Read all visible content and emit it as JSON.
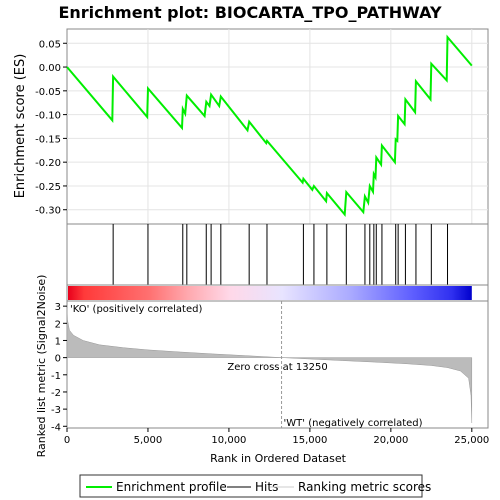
{
  "chart_data": {
    "type": "line",
    "title": "Enrichment plot: BIOCARTA_TPO_PATHWAY",
    "top_panel": {
      "ylabel": "Enrichment score (ES)",
      "ylim": [
        -0.33,
        0.08
      ],
      "yticks": [
        0.05,
        0.0,
        -0.05,
        -0.1,
        -0.15,
        -0.2,
        -0.25,
        -0.3
      ],
      "ytick_labels": [
        "0.05",
        "0.00",
        "-0.05",
        "-0.10",
        "-0.15",
        "-0.20",
        "-0.25",
        "-0.30"
      ],
      "profile_color": "#00ee00",
      "profile_points": [
        [
          0,
          0.0
        ],
        [
          2800,
          -0.112
        ],
        [
          2850,
          -0.02
        ],
        [
          4950,
          -0.105
        ],
        [
          5000,
          -0.045
        ],
        [
          7100,
          -0.128
        ],
        [
          7150,
          -0.088
        ],
        [
          7300,
          -0.098
        ],
        [
          7400,
          -0.06
        ],
        [
          8500,
          -0.103
        ],
        [
          8600,
          -0.073
        ],
        [
          8800,
          -0.082
        ],
        [
          8900,
          -0.058
        ],
        [
          9400,
          -0.082
        ],
        [
          9500,
          -0.062
        ],
        [
          11150,
          -0.133
        ],
        [
          11250,
          -0.115
        ],
        [
          12300,
          -0.16
        ],
        [
          12350,
          -0.155
        ],
        [
          14550,
          -0.243
        ],
        [
          14600,
          -0.235
        ],
        [
          15150,
          -0.258
        ],
        [
          15250,
          -0.25
        ],
        [
          16000,
          -0.282
        ],
        [
          16050,
          -0.265
        ],
        [
          17150,
          -0.31
        ],
        [
          17250,
          -0.263
        ],
        [
          18300,
          -0.305
        ],
        [
          18400,
          -0.272
        ],
        [
          18600,
          -0.285
        ],
        [
          18700,
          -0.25
        ],
        [
          18900,
          -0.262
        ],
        [
          18950,
          -0.225
        ],
        [
          19050,
          -0.232
        ],
        [
          19100,
          -0.19
        ],
        [
          19400,
          -0.205
        ],
        [
          19450,
          -0.165
        ],
        [
          20250,
          -0.2
        ],
        [
          20300,
          -0.152
        ],
        [
          20400,
          -0.155
        ],
        [
          20450,
          -0.103
        ],
        [
          20850,
          -0.12
        ],
        [
          20900,
          -0.068
        ],
        [
          21500,
          -0.095
        ],
        [
          21550,
          -0.03
        ],
        [
          22450,
          -0.068
        ],
        [
          22500,
          0.007
        ],
        [
          23450,
          -0.028
        ],
        [
          23500,
          0.063
        ],
        [
          25000,
          0.003
        ]
      ]
    },
    "hits_panel": {
      "label": "Hits",
      "hit_positions": [
        2850,
        5000,
        7150,
        7400,
        8600,
        8900,
        9500,
        11250,
        12350,
        14600,
        15250,
        16050,
        17250,
        18400,
        18700,
        18950,
        19100,
        19450,
        20300,
        20450,
        20900,
        21550,
        22500,
        23500
      ]
    },
    "rank_panel": {
      "ylabel": "Ranked list metric (Signal2Noise)",
      "xlabel": "Rank in Ordered Dataset",
      "xlim": [
        0,
        26000
      ],
      "ylim": [
        -4.1,
        3.3
      ],
      "yticks": [
        3,
        2,
        1,
        0,
        -1,
        -2,
        -3,
        -4
      ],
      "ytick_labels": [
        "3",
        "2",
        "1",
        "0",
        "-1",
        "-2",
        "-3",
        "-4"
      ],
      "xticks": [
        0,
        5000,
        10000,
        15000,
        20000,
        25000
      ],
      "xtick_labels": [
        "0",
        "5,000",
        "10,000",
        "15,000",
        "20,000",
        "25,000"
      ],
      "zero_cross": 13250,
      "zero_cross_label": "Zero cross at 13250",
      "pos_label": "'KO' (positively correlated)",
      "neg_label": "'WT' (negatively correlated)",
      "total_ranks": 25000,
      "metric_profile": [
        [
          0,
          2.9
        ],
        [
          30,
          2.2
        ],
        [
          150,
          1.6
        ],
        [
          400,
          1.3
        ],
        [
          1000,
          1.0
        ],
        [
          2000,
          0.75
        ],
        [
          3500,
          0.58
        ],
        [
          5000,
          0.45
        ],
        [
          7000,
          0.33
        ],
        [
          9000,
          0.22
        ],
        [
          11000,
          0.12
        ],
        [
          13250,
          0.0
        ],
        [
          15000,
          -0.08
        ],
        [
          17000,
          -0.17
        ],
        [
          19000,
          -0.26
        ],
        [
          21000,
          -0.36
        ],
        [
          22500,
          -0.46
        ],
        [
          23500,
          -0.58
        ],
        [
          24300,
          -0.78
        ],
        [
          24800,
          -1.2
        ],
        [
          24950,
          -2.2
        ],
        [
          25000,
          -3.8
        ]
      ]
    },
    "legend": {
      "placement": "bottom",
      "items": [
        {
          "label": "Enrichment profile",
          "color": "#00ee00"
        },
        {
          "label": "Hits",
          "color": "#000000"
        },
        {
          "label": "Ranking metric scores",
          "color": "#cccccc"
        }
      ]
    }
  }
}
